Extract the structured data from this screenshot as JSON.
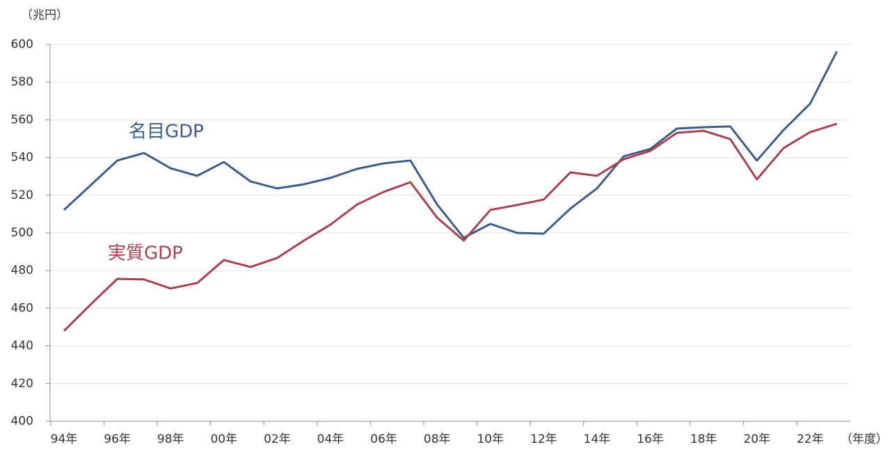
{
  "chart_data": {
    "type": "line",
    "y_axis_label": "（兆円）",
    "x_axis_label": "（年度）",
    "categories": [
      "94年",
      null,
      "96年",
      null,
      "98年",
      null,
      "00年",
      null,
      "02年",
      null,
      "04年",
      null,
      "06年",
      null,
      "08年",
      null,
      "10年",
      null,
      "12年",
      null,
      "14年",
      null,
      "16年",
      null,
      "18年",
      null,
      "20年",
      null,
      "22年",
      null
    ],
    "series": [
      {
        "name": "名目GDP",
        "color": "#3c5a8a",
        "values": [
          512.2,
          525.3,
          538.4,
          542.4,
          534.3,
          530.3,
          537.6,
          527.3,
          523.6,
          525.8,
          529.2,
          534.0,
          536.9,
          538.4,
          515.1,
          497.4,
          504.8,
          500.0,
          499.6,
          512.9,
          523.6,
          540.6,
          544.6,
          555.4,
          556.1,
          556.5,
          538.4,
          554.6,
          568.6,
          596.3
        ]
      },
      {
        "name": "実質GDP",
        "color": "#a8404f",
        "values": [
          448.0,
          462.0,
          475.6,
          475.3,
          470.5,
          473.4,
          485.6,
          481.9,
          486.7,
          495.9,
          504.4,
          515.1,
          521.8,
          526.9,
          508.1,
          495.9,
          512.2,
          514.8,
          517.7,
          532.1,
          530.3,
          539.1,
          543.5,
          553.1,
          554.2,
          549.8,
          528.4,
          545.0,
          553.5,
          557.9
        ]
      }
    ],
    "ylim": [
      400,
      600
    ],
    "yticks": [
      400,
      420,
      440,
      460,
      480,
      500,
      520,
      540,
      560,
      580,
      600
    ],
    "grid": true
  }
}
